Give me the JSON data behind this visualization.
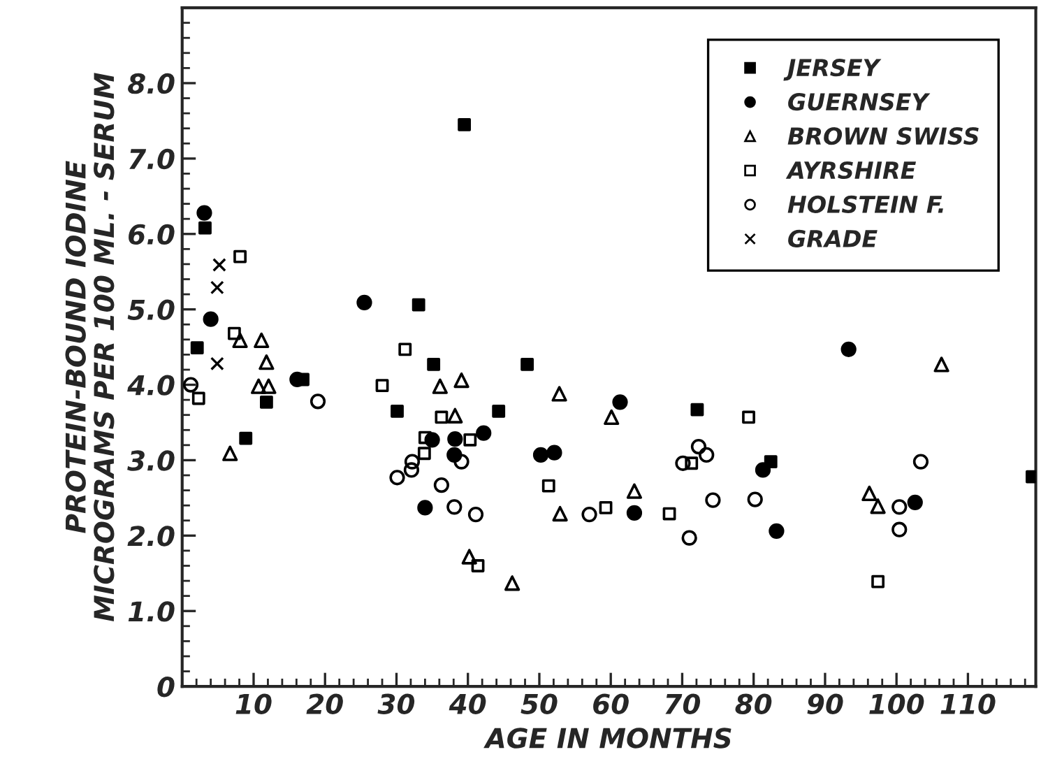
{
  "chart_data": {
    "type": "scatter",
    "xlabel": "AGE IN MONTHS",
    "ylabel": "PROTEIN-BOUND IODINE\nMICROGRAMS PER 100 ML. - SERUM",
    "xlim": [
      0,
      119.5
    ],
    "ylim": [
      0,
      9.0
    ],
    "xticks": [
      10,
      20,
      30,
      40,
      50,
      60,
      70,
      80,
      90,
      100,
      110
    ],
    "yticks": [
      0,
      {
        "value": 1,
        "label": "1.0"
      },
      {
        "value": 2,
        "label": "2.0"
      },
      {
        "value": 3,
        "label": "3.0"
      },
      {
        "value": 4,
        "label": "4.0"
      },
      {
        "value": 5,
        "label": "5.0"
      },
      {
        "value": 6,
        "label": "6.0"
      },
      {
        "value": 7,
        "label": "7.0"
      },
      {
        "value": 8,
        "label": "8.0"
      }
    ],
    "grid": false,
    "legend": "top right",
    "series": [
      {
        "name": "JERSEY",
        "color": "#000000",
        "marker": "square",
        "x": [
          3.2,
          2.1,
          8.9,
          11.8,
          16.9,
          30.1,
          33.1,
          35.2,
          39.5,
          44.3,
          48.3,
          72.1,
          82.4,
          119.0
        ],
        "values": [
          6.08,
          4.49,
          3.29,
          3.77,
          4.07,
          3.65,
          5.06,
          4.27,
          7.45,
          3.65,
          4.27,
          3.67,
          2.98,
          2.78
        ]
      },
      {
        "name": "GUERNSEY",
        "color": "#000000",
        "marker": "circle",
        "x": [
          3.1,
          4.0,
          16.1,
          25.5,
          34.0,
          35.0,
          38.2,
          38.1,
          42.2,
          50.2,
          52.1,
          61.3,
          63.3,
          81.3,
          83.2,
          93.3,
          102.6
        ],
        "values": [
          6.28,
          4.87,
          4.07,
          5.09,
          2.37,
          3.27,
          3.28,
          3.07,
          3.36,
          3.07,
          3.1,
          3.77,
          2.3,
          2.87,
          2.06,
          4.47,
          2.44
        ]
      },
      {
        "name": "BROWN SWISS",
        "color": "#000000",
        "marker": "triangle",
        "x": [
          6.7,
          8.1,
          10.7,
          11.1,
          11.8,
          12.1,
          36.1,
          38.2,
          39.1,
          40.2,
          46.2,
          52.8,
          52.9,
          60.1,
          63.3,
          96.2,
          97.4,
          106.3
        ],
        "values": [
          3.09,
          4.59,
          3.98,
          4.59,
          4.3,
          3.98,
          3.98,
          3.59,
          4.06,
          1.72,
          1.37,
          3.88,
          2.29,
          3.57,
          2.59,
          2.56,
          2.39,
          4.27
        ]
      },
      {
        "name": "AYRSHIRE",
        "color": "#000000",
        "marker": "square",
        "x": [
          2.3,
          7.3,
          8.1,
          28.0,
          31.2,
          33.9,
          34.0,
          36.3,
          40.3,
          41.4,
          51.3,
          59.3,
          68.2,
          71.3,
          79.3,
          97.4
        ],
        "values": [
          3.82,
          4.68,
          5.7,
          3.99,
          4.47,
          3.09,
          3.3,
          3.57,
          3.27,
          1.6,
          2.66,
          2.37,
          2.29,
          2.96,
          3.57,
          1.39
        ]
      },
      {
        "name": "HOLSTEIN F.",
        "color": "#000000",
        "marker": "circle",
        "x": [
          1.2,
          19.0,
          30.1,
          32.1,
          32.2,
          36.3,
          38.1,
          39.1,
          41.1,
          57.0,
          70.1,
          71.0,
          72.3,
          73.4,
          74.3,
          80.2,
          100.4,
          100.4,
          103.4
        ],
        "values": [
          4.0,
          3.78,
          2.77,
          2.87,
          2.98,
          2.67,
          2.38,
          2.98,
          2.28,
          2.28,
          2.96,
          1.97,
          3.18,
          3.07,
          2.47,
          2.48,
          2.38,
          2.08,
          2.98
        ]
      },
      {
        "name": "GRADE",
        "color": "#000000",
        "marker": "cross",
        "x": [
          5.2,
          4.9,
          4.9
        ],
        "values": [
          5.59,
          5.29,
          4.28
        ]
      }
    ]
  }
}
